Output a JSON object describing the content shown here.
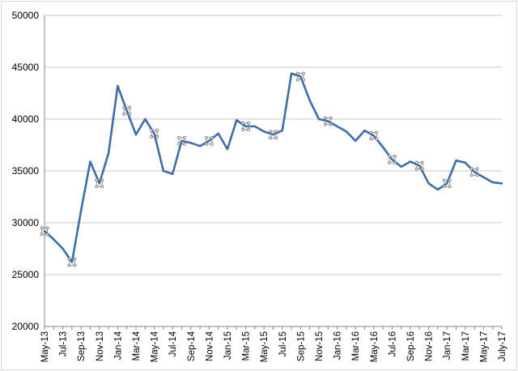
{
  "chart_data": {
    "type": "line",
    "title": "",
    "xlabel": "",
    "ylabel": "",
    "ylim": [
      20000,
      50000
    ],
    "yticks": [
      20000,
      25000,
      30000,
      35000,
      40000,
      45000,
      50000
    ],
    "ytick_labels": [
      "20000",
      "25000",
      "30000",
      "35000",
      "40000",
      "45000",
      "50000"
    ],
    "grid": "horizontal",
    "legend": "none",
    "x_labels": [
      "May-13",
      "Jul-13",
      "Sep-13",
      "Nov-13",
      "Jan-14",
      "Mar-14",
      "May-14",
      "Jul-14",
      "Sep-14",
      "Nov-14",
      "Jan-15",
      "Mar-15",
      "May-15",
      "Jul-15",
      "Sep-15",
      "Nov-15",
      "Jan-16",
      "Mar-16",
      "May-16",
      "Jul-16",
      "Sep-16",
      "Nov-16",
      "Jan-17",
      "Mar-17",
      "May-17",
      "July-17"
    ],
    "x": [
      "May-13",
      "Jun-13",
      "Jul-13",
      "Aug-13",
      "Sep-13",
      "Oct-13",
      "Nov-13",
      "Dec-13",
      "Jan-14",
      "Feb-14",
      "Mar-14",
      "Apr-14",
      "May-14",
      "Jun-14",
      "Jul-14",
      "Aug-14",
      "Sep-14",
      "Oct-14",
      "Nov-14",
      "Dec-14",
      "Jan-15",
      "Feb-15",
      "Mar-15",
      "Apr-15",
      "May-15",
      "Jun-15",
      "Jul-15",
      "Aug-15",
      "Sep-15",
      "Oct-15",
      "Nov-15",
      "Dec-15",
      "Jan-16",
      "Feb-16",
      "Mar-16",
      "Apr-16",
      "May-16",
      "Jun-16",
      "Jul-16",
      "Aug-16",
      "Sep-16",
      "Oct-16",
      "Nov-16",
      "Dec-16",
      "Jan-17",
      "Feb-17",
      "Mar-17",
      "Apr-17",
      "May-17",
      "Jun-17",
      "July-17"
    ],
    "series": [
      {
        "color": "#3c6eaa",
        "values": [
          29200,
          28400,
          27500,
          26200,
          31200,
          35900,
          33800,
          36700,
          43200,
          40800,
          38500,
          40000,
          38600,
          35000,
          34700,
          37900,
          37700,
          37400,
          37900,
          38600,
          37100,
          39900,
          39300,
          39300,
          38800,
          38500,
          38900,
          44400,
          44100,
          41800,
          40000,
          39800,
          39300,
          38800,
          37900,
          38900,
          38400,
          37300,
          36100,
          35400,
          35900,
          35500,
          33800,
          33200,
          33800,
          36000,
          35800,
          34900,
          34400,
          33900,
          33800
        ],
        "markers": [
          0,
          3,
          6,
          9,
          12,
          15,
          18,
          22,
          25,
          28,
          31,
          36,
          38,
          41,
          44,
          47
        ]
      }
    ]
  }
}
